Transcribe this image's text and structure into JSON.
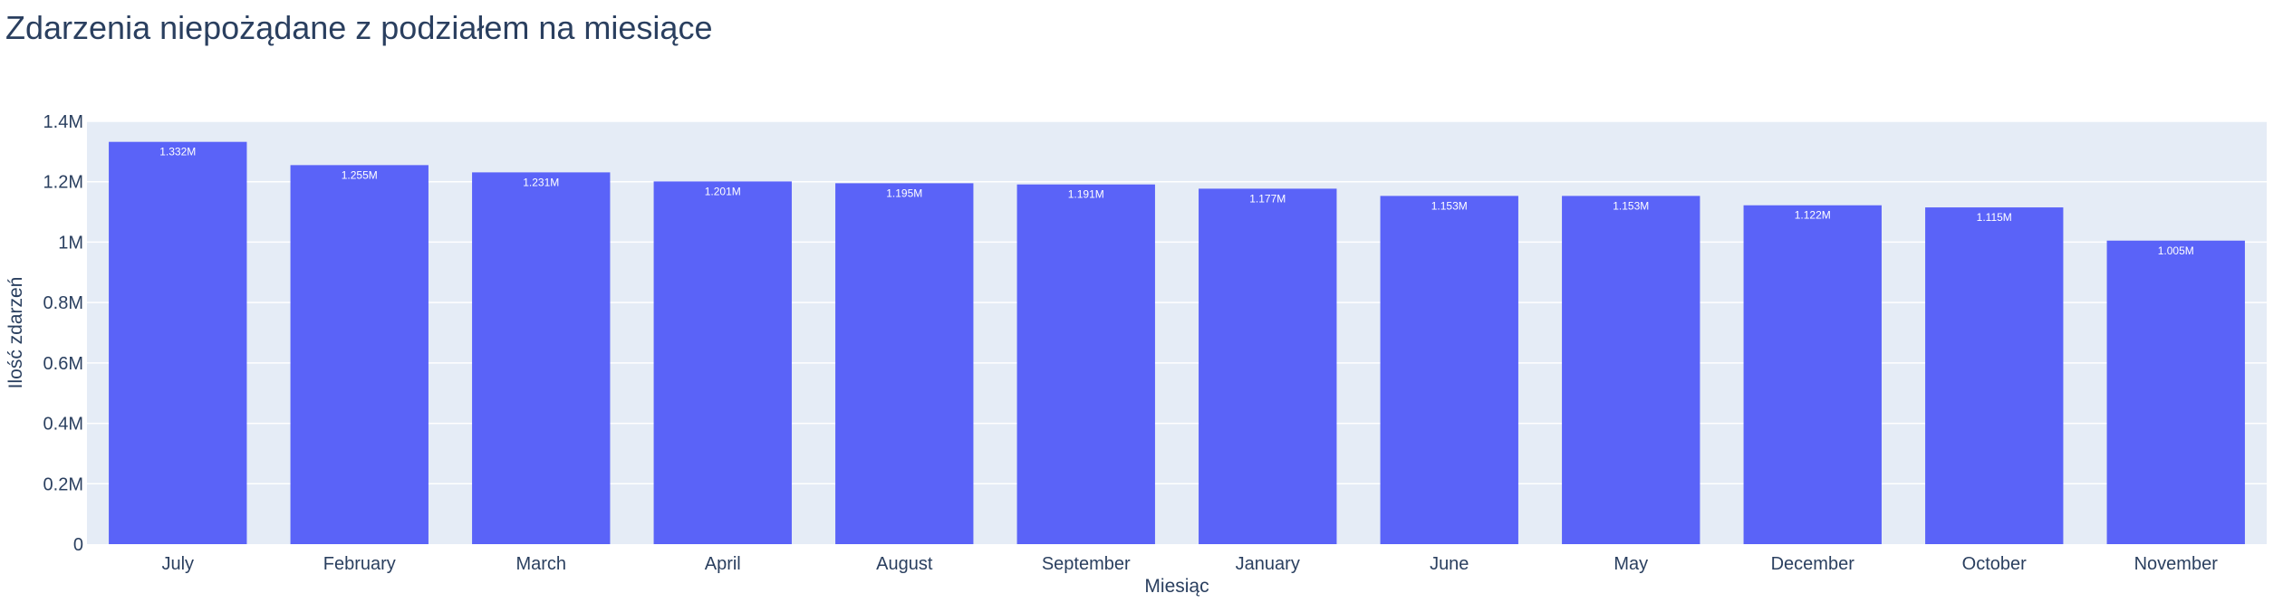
{
  "chart_data": {
    "type": "bar",
    "title": "Zdarzenia niepożądane z podziałem na miesiące",
    "xlabel": "Miesiąc",
    "ylabel": "Ilość zdarzeń",
    "categories": [
      "July",
      "February",
      "March",
      "April",
      "August",
      "September",
      "January",
      "June",
      "May",
      "December",
      "October",
      "November"
    ],
    "values": [
      1332000,
      1255000,
      1231000,
      1201000,
      1195000,
      1191000,
      1177000,
      1153000,
      1153000,
      1122000,
      1115000,
      1005000
    ],
    "data_labels": [
      "1.332M",
      "1.255M",
      "1.231M",
      "1.201M",
      "1.195M",
      "1.191M",
      "1.177M",
      "1.153M",
      "1.153M",
      "1.122M",
      "1.115M",
      "1.005M"
    ],
    "ylim": [
      0,
      1400000
    ],
    "yticks": [
      0,
      200000,
      400000,
      600000,
      800000,
      1000000,
      1200000,
      1400000
    ],
    "ytick_labels": [
      "0",
      "0.2M",
      "0.4M",
      "0.6M",
      "0.8M",
      "1M",
      "1.2M",
      "1.4M"
    ],
    "grid": true,
    "colors": {
      "bar": "#5a63f8",
      "plot_bg": "#e5ecf6",
      "grid": "#ffffff",
      "text": "#2a3f5f"
    }
  }
}
